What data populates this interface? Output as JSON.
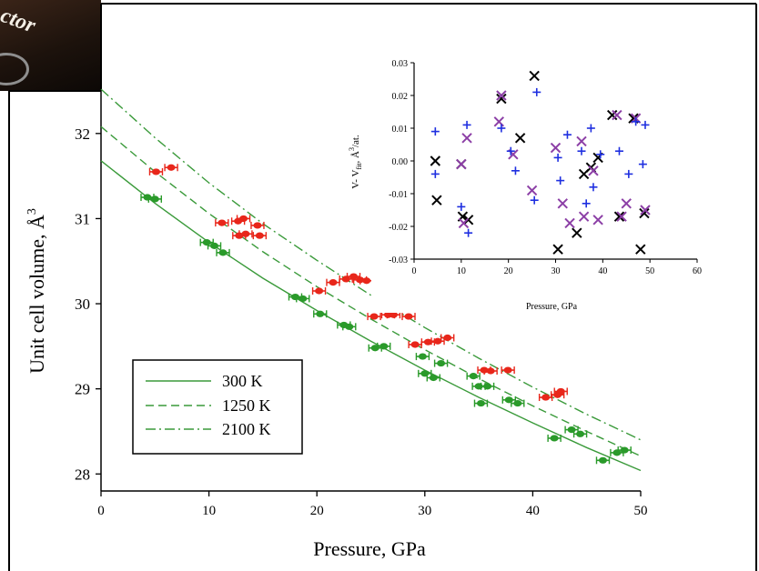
{
  "photo_label": "ctor",
  "main_chart": {
    "type": "scatter",
    "xlabel": "Pressure, GPa",
    "ylabel": "Unit cell volume, Å",
    "ylabel_sup": "3",
    "xlim": [
      0,
      50
    ],
    "ylim": [
      27.8,
      32.5
    ],
    "x_ticks": [
      0,
      10,
      20,
      30,
      40,
      50
    ],
    "y_ticks": [
      28,
      29,
      30,
      31,
      32
    ],
    "legend": {
      "placement": "bottom-left",
      "entries": [
        {
          "label": "300 K",
          "dash": "solid"
        },
        {
          "label": "1250 K",
          "dash": "dashed"
        },
        {
          "label": "2100 K",
          "dash": "dashdot"
        }
      ]
    },
    "curves": [
      {
        "name": "300 K",
        "dash": "solid",
        "x": [
          0,
          5,
          10,
          15,
          20,
          25,
          30,
          35,
          40,
          45,
          50
        ],
        "y": [
          31.68,
          31.18,
          30.72,
          30.3,
          29.92,
          29.56,
          29.22,
          28.9,
          28.6,
          28.31,
          28.04
        ]
      },
      {
        "name": "1250 K",
        "dash": "dashed",
        "x": [
          0,
          5,
          10,
          15,
          20,
          25,
          30,
          35,
          40,
          45,
          50
        ],
        "y": [
          32.08,
          31.55,
          31.06,
          30.61,
          30.2,
          29.82,
          29.46,
          29.12,
          28.8,
          28.5,
          28.21
        ]
      },
      {
        "name": "2100 K",
        "dash": "dashdot",
        "x": [
          0,
          5,
          10,
          15,
          20,
          25,
          30,
          35,
          40,
          45,
          50
        ],
        "y": [
          32.52,
          31.95,
          31.42,
          30.94,
          30.51,
          30.1,
          29.72,
          29.36,
          29.02,
          28.7,
          28.4
        ]
      }
    ],
    "series": [
      {
        "color": "#2a9a2a",
        "points": [
          [
            4.3,
            31.25
          ],
          [
            5.0,
            31.23
          ],
          [
            9.8,
            30.72
          ],
          [
            10.5,
            30.68
          ],
          [
            11.3,
            30.6
          ],
          [
            18.0,
            30.08
          ],
          [
            18.7,
            30.06
          ],
          [
            20.3,
            29.88
          ],
          [
            22.5,
            29.75
          ],
          [
            23.0,
            29.73
          ],
          [
            25.4,
            29.48
          ],
          [
            26.2,
            29.5
          ],
          [
            29.8,
            29.38
          ],
          [
            30.0,
            29.18
          ],
          [
            30.8,
            29.13
          ],
          [
            31.5,
            29.3
          ],
          [
            34.5,
            29.15
          ],
          [
            35.0,
            29.03
          ],
          [
            35.8,
            29.03
          ],
          [
            35.2,
            28.83
          ],
          [
            37.8,
            28.87
          ],
          [
            38.6,
            28.83
          ],
          [
            42.0,
            28.42
          ],
          [
            43.6,
            28.52
          ],
          [
            44.4,
            28.47
          ],
          [
            46.5,
            28.16
          ],
          [
            47.8,
            28.25
          ],
          [
            48.5,
            28.28
          ]
        ]
      },
      {
        "color": "#e8261a",
        "points": [
          [
            5.1,
            31.55
          ],
          [
            6.5,
            31.6
          ],
          [
            11.2,
            30.95
          ],
          [
            12.7,
            30.97
          ],
          [
            13.2,
            31.0
          ],
          [
            12.8,
            30.8
          ],
          [
            13.4,
            30.82
          ],
          [
            14.5,
            30.92
          ],
          [
            14.7,
            30.8
          ],
          [
            20.2,
            30.15
          ],
          [
            21.5,
            30.25
          ],
          [
            22.7,
            30.29
          ],
          [
            23.4,
            30.32
          ],
          [
            24.0,
            30.28
          ],
          [
            24.6,
            30.27
          ],
          [
            25.3,
            29.85
          ],
          [
            26.6,
            29.87
          ],
          [
            27.1,
            29.87
          ],
          [
            28.5,
            29.85
          ],
          [
            29.1,
            29.52
          ],
          [
            30.3,
            29.55
          ],
          [
            31.2,
            29.56
          ],
          [
            32.1,
            29.6
          ],
          [
            35.5,
            29.22
          ],
          [
            36.1,
            29.21
          ],
          [
            37.7,
            29.22
          ],
          [
            41.2,
            28.9
          ],
          [
            42.3,
            28.93
          ],
          [
            42.6,
            28.97
          ]
        ]
      }
    ]
  },
  "inset_chart": {
    "type": "scatter",
    "xlabel": "Pressure, GPa",
    "ylabel": "V- V",
    "ylabel_sub": "fit",
    "ylabel_post": ", Å",
    "ylabel_sup": "3",
    "ylabel_end": "/at.",
    "xlim": [
      0,
      60
    ],
    "ylim": [
      -0.03,
      0.03
    ],
    "x_ticks": [
      0,
      10,
      20,
      30,
      40,
      50,
      60
    ],
    "y_ticks": [
      "0.03",
      "0.02",
      "0.01",
      "0.00",
      "-0.01",
      "-0.02",
      "-0.03"
    ],
    "series": [
      {
        "marker": "x",
        "color": "#000000",
        "points": [
          [
            4.5,
            0.0
          ],
          [
            4.8,
            -0.012
          ],
          [
            10.0,
            -0.001
          ],
          [
            10.3,
            -0.017
          ],
          [
            11.5,
            -0.018
          ],
          [
            18.5,
            0.019
          ],
          [
            22.5,
            0.007
          ],
          [
            25.5,
            0.026
          ],
          [
            30.5,
            -0.027
          ],
          [
            34.5,
            -0.022
          ],
          [
            36.0,
            -0.004
          ],
          [
            37.5,
            -0.002
          ],
          [
            39.0,
            0.001
          ],
          [
            42.0,
            0.014
          ],
          [
            43.5,
            -0.017
          ],
          [
            46.5,
            0.013
          ],
          [
            48.0,
            -0.027
          ],
          [
            48.8,
            -0.016
          ]
        ]
      },
      {
        "marker": "x",
        "color": "#8c3fa6",
        "points": [
          [
            10.0,
            -0.001
          ],
          [
            10.5,
            -0.019
          ],
          [
            11.2,
            0.007
          ],
          [
            18.0,
            0.012
          ],
          [
            18.5,
            0.02
          ],
          [
            21.0,
            0.002
          ],
          [
            25.0,
            -0.009
          ],
          [
            30.0,
            0.004
          ],
          [
            31.5,
            -0.013
          ],
          [
            33.0,
            -0.019
          ],
          [
            35.5,
            0.006
          ],
          [
            36.0,
            -0.017
          ],
          [
            38.0,
            -0.003
          ],
          [
            39.0,
            -0.018
          ],
          [
            43.0,
            0.014
          ],
          [
            44.0,
            -0.017
          ],
          [
            45.0,
            -0.013
          ],
          [
            47.0,
            0.013
          ],
          [
            49.0,
            -0.015
          ]
        ]
      },
      {
        "marker": "+",
        "color": "#1e2fe0",
        "points": [
          [
            4.5,
            0.009
          ],
          [
            4.5,
            -0.004
          ],
          [
            10.0,
            -0.014
          ],
          [
            11.2,
            0.011
          ],
          [
            11.5,
            -0.022
          ],
          [
            18.5,
            0.01
          ],
          [
            20.5,
            0.003
          ],
          [
            21.5,
            -0.003
          ],
          [
            25.5,
            -0.012
          ],
          [
            26.0,
            0.021
          ],
          [
            30.5,
            0.001
          ],
          [
            31.0,
            -0.006
          ],
          [
            32.5,
            0.008
          ],
          [
            35.5,
            0.003
          ],
          [
            36.5,
            -0.013
          ],
          [
            37.5,
            0.01
          ],
          [
            38.0,
            -0.008
          ],
          [
            39.5,
            0.002
          ],
          [
            43.5,
            0.003
          ],
          [
            45.5,
            -0.004
          ],
          [
            47.0,
            0.012
          ],
          [
            48.5,
            -0.001
          ],
          [
            49.0,
            0.011
          ]
        ]
      }
    ]
  }
}
